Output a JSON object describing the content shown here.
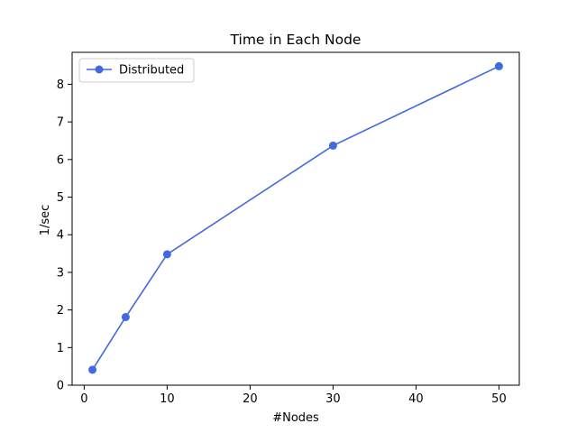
{
  "chart_data": {
    "type": "line",
    "title": "Time in Each Node",
    "xlabel": "#Nodes",
    "ylabel": "1/sec",
    "x": [
      1,
      5,
      10,
      30,
      50
    ],
    "xlim": [
      -1.45,
      52.45
    ],
    "ylim": [
      0,
      8.85
    ],
    "xticks": [
      0,
      10,
      20,
      30,
      40,
      50
    ],
    "yticks": [
      0,
      1,
      2,
      3,
      4,
      5,
      6,
      7,
      8
    ],
    "grid": false,
    "legend_position": "upper-left",
    "series": [
      {
        "name": "Distributed",
        "values": [
          0.41,
          1.81,
          3.48,
          6.37,
          8.48
        ],
        "color": "#4169e1",
        "marker": "circle"
      }
    ]
  }
}
